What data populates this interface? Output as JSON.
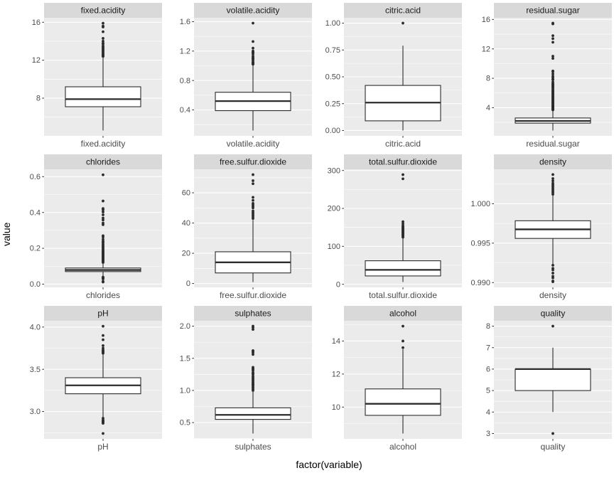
{
  "figure": {
    "colors": {
      "strip_bg": "#D9D9D9",
      "strip_text": "#1A1A1A",
      "panel_bg": "#EBEBEB",
      "grid_line": "#FFFFFF",
      "box_stroke": "#2B2B2B",
      "box_fill": "#FFFFFF",
      "axis_text": "#4D4D4D",
      "tick_mark": "#333333",
      "background": "#FFFFFF"
    }
  },
  "chart_data": {
    "type": "boxplot",
    "facet_layout": {
      "rows": 3,
      "cols": 4
    },
    "xlabel": "factor(variable)",
    "ylabel": "value",
    "legend": "none",
    "grid": "on",
    "panels": [
      {
        "title": "fixed.acidity",
        "x_label": "fixed.acidity",
        "ylim": [
          4.03,
          16.47
        ],
        "tick_values": [
          8,
          12,
          16
        ],
        "tick_labels": [
          "8",
          "12",
          "16"
        ],
        "box": {
          "whisker_low": 4.6,
          "q1": 7.1,
          "median": 7.9,
          "q3": 9.2,
          "whisker_high": 12.3
        },
        "outliers": [
          12.4,
          12.45,
          12.5,
          12.55,
          12.6,
          12.7,
          12.8,
          12.9,
          13.0,
          13.1,
          13.2,
          13.3,
          13.4,
          13.5,
          13.7,
          13.8,
          14.0,
          14.3,
          15.0,
          15.5,
          15.6,
          15.9
        ]
      },
      {
        "title": "volatile.acidity",
        "x_label": "volatile.acidity",
        "ylim": [
          0.047,
          1.653
        ],
        "tick_values": [
          0.4,
          0.8,
          1.2,
          1.6
        ],
        "tick_labels": [
          "0.4",
          "0.8",
          "1.2",
          "1.6"
        ],
        "box": {
          "whisker_low": 0.12,
          "q1": 0.39,
          "median": 0.52,
          "q3": 0.64,
          "whisker_high": 1.01
        },
        "outliers": [
          1.02,
          1.025,
          1.035,
          1.04,
          1.05,
          1.07,
          1.09,
          1.1,
          1.115,
          1.13,
          1.16,
          1.18,
          1.185,
          1.2,
          1.24,
          1.33,
          1.58
        ]
      },
      {
        "title": "citric.acid",
        "x_label": "citric.acid",
        "ylim": [
          -0.05,
          1.05
        ],
        "tick_values": [
          0,
          0.25,
          0.5,
          0.75,
          1.0
        ],
        "tick_labels": [
          "0.00",
          "0.25",
          "0.50",
          "0.75",
          "1.00"
        ],
        "box": {
          "whisker_low": 0.0,
          "q1": 0.09,
          "median": 0.26,
          "q3": 0.42,
          "whisker_high": 0.79
        },
        "outliers": [
          1.0
        ]
      },
      {
        "title": "residual.sugar",
        "x_label": "residual.sugar",
        "ylim": [
          0.17,
          16.23
        ],
        "tick_values": [
          4,
          8,
          12,
          16
        ],
        "tick_labels": [
          "4",
          "8",
          "12",
          "16"
        ],
        "box": {
          "whisker_low": 0.9,
          "q1": 1.9,
          "median": 2.2,
          "q3": 2.6,
          "whisker_high": 3.65
        },
        "outliers": [
          3.7,
          3.75,
          3.8,
          3.85,
          3.9,
          3.95,
          4.0,
          4.05,
          4.1,
          4.15,
          4.2,
          4.25,
          4.3,
          4.4,
          4.5,
          4.6,
          4.65,
          4.7,
          4.8,
          4.9,
          5.0,
          5.1,
          5.15,
          5.2,
          5.3,
          5.4,
          5.5,
          5.6,
          5.7,
          5.8,
          5.9,
          6.0,
          6.1,
          6.2,
          6.3,
          6.4,
          6.55,
          6.7,
          6.8,
          6.9,
          7.0,
          7.1,
          7.2,
          7.3,
          7.5,
          7.8,
          7.9,
          8.1,
          8.3,
          8.6,
          8.9,
          9.0,
          10.7,
          11.0,
          12.9,
          13.4,
          13.8,
          15.4,
          15.5
        ]
      },
      {
        "title": "chlorides",
        "x_label": "chlorides",
        "ylim": [
          -0.018,
          0.641
        ],
        "tick_values": [
          0,
          0.2,
          0.4,
          0.6
        ],
        "tick_labels": [
          "0.0",
          "0.2",
          "0.4",
          "0.6"
        ],
        "box": {
          "whisker_low": 0.041,
          "q1": 0.07,
          "median": 0.079,
          "q3": 0.09,
          "whisker_high": 0.119
        },
        "outliers": [
          0.012,
          0.015,
          0.029,
          0.034,
          0.038,
          0.039,
          0.121,
          0.125,
          0.128,
          0.132,
          0.135,
          0.139,
          0.142,
          0.146,
          0.15,
          0.153,
          0.157,
          0.161,
          0.165,
          0.169,
          0.172,
          0.176,
          0.18,
          0.184,
          0.188,
          0.194,
          0.2,
          0.205,
          0.211,
          0.216,
          0.222,
          0.23,
          0.235,
          0.24,
          0.25,
          0.263,
          0.27,
          0.332,
          0.341,
          0.358,
          0.369,
          0.387,
          0.403,
          0.415,
          0.422,
          0.464,
          0.61
        ]
      },
      {
        "title": "free.sulfur.dioxide",
        "x_label": "free.sulfur.dioxide",
        "ylim": [
          -2.55,
          75.55
        ],
        "tick_values": [
          0,
          20,
          40,
          60
        ],
        "tick_labels": [
          "0",
          "20",
          "40",
          "60"
        ],
        "box": {
          "whisker_low": 1,
          "q1": 7,
          "median": 14,
          "q3": 21,
          "whisker_high": 42
        },
        "outliers": [
          43,
          44,
          45,
          46,
          47,
          48,
          50,
          51,
          52,
          53,
          55,
          57,
          66,
          68,
          72
        ]
      },
      {
        "title": "total.sulfur.dioxide",
        "x_label": "total.sulfur.dioxide",
        "ylim": [
          -8.15,
          303.15
        ],
        "tick_values": [
          0,
          100,
          200,
          300
        ],
        "tick_labels": [
          "0",
          "100",
          "200",
          "300"
        ],
        "box": {
          "whisker_low": 6,
          "q1": 22,
          "median": 38,
          "q3": 62,
          "whisker_high": 122
        },
        "outliers": [
          124,
          126,
          128,
          130,
          132,
          134,
          136,
          138,
          140,
          142,
          144,
          146,
          148,
          150,
          152,
          155,
          160,
          165,
          278,
          289
        ]
      },
      {
        "title": "density",
        "x_label": "density",
        "ylim": [
          0.98939,
          1.00437
        ],
        "tick_values": [
          0.99,
          0.995,
          1.0
        ],
        "tick_labels": [
          "0.990",
          "0.995",
          "1.000"
        ],
        "box": {
          "whisker_low": 0.99235,
          "q1": 0.9956,
          "median": 0.99675,
          "q3": 0.99784,
          "whisker_high": 1.0011
        },
        "outliers": [
          1.0012,
          1.0014,
          1.0016,
          1.0018,
          1.002,
          1.0022,
          1.0024,
          1.0026,
          1.0029,
          1.0032,
          1.0037,
          0.9901,
          0.9902,
          0.9906,
          0.9908,
          0.9912,
          0.9916,
          0.9918,
          0.9922
        ]
      },
      {
        "title": "pH",
        "x_label": "pH",
        "ylim": [
          2.676,
          4.074
        ],
        "tick_values": [
          3.0,
          3.5,
          4.0
        ],
        "tick_labels": [
          "3.0",
          "3.5",
          "4.0"
        ],
        "box": {
          "whisker_low": 2.93,
          "q1": 3.21,
          "median": 3.31,
          "q3": 3.4,
          "whisker_high": 3.68
        },
        "outliers": [
          3.69,
          3.7,
          3.71,
          3.72,
          3.73,
          3.75,
          3.78,
          3.85,
          3.9,
          4.01,
          2.92,
          2.9,
          2.89,
          2.88,
          2.87,
          2.86,
          2.74
        ]
      },
      {
        "title": "sulphates",
        "x_label": "sulphates",
        "ylim": [
          0.2465,
          2.0835
        ],
        "tick_values": [
          0.5,
          1.0,
          1.5,
          2.0
        ],
        "tick_labels": [
          "0.5",
          "1.0",
          "1.5",
          "2.0"
        ],
        "box": {
          "whisker_low": 0.33,
          "q1": 0.55,
          "median": 0.62,
          "q3": 0.73,
          "whisker_high": 0.99
        },
        "outliers": [
          1.0,
          1.02,
          1.04,
          1.06,
          1.08,
          1.09,
          1.1,
          1.12,
          1.14,
          1.16,
          1.18,
          1.2,
          1.22,
          1.25,
          1.26,
          1.28,
          1.31,
          1.33,
          1.34,
          1.36,
          1.56,
          1.59,
          1.61,
          1.62,
          1.95,
          1.98,
          2.0
        ]
      },
      {
        "title": "alcohol",
        "x_label": "alcohol",
        "ylim": [
          8.075,
          15.225
        ],
        "tick_values": [
          10,
          12,
          14
        ],
        "tick_labels": [
          "10",
          "12",
          "14"
        ],
        "box": {
          "whisker_low": 8.4,
          "q1": 9.5,
          "median": 10.2,
          "q3": 11.1,
          "whisker_high": 13.5
        },
        "outliers": [
          13.6,
          14.0,
          14.9
        ]
      },
      {
        "title": "quality",
        "x_label": "quality",
        "ylim": [
          2.75,
          8.25
        ],
        "tick_values": [
          3,
          4,
          5,
          6,
          7,
          8
        ],
        "tick_labels": [
          "3",
          "4",
          "5",
          "6",
          "7",
          "8"
        ],
        "box": {
          "whisker_low": 4,
          "q1": 5,
          "median": 6,
          "q3": 6,
          "whisker_high": 7
        },
        "outliers": [
          3,
          8
        ]
      }
    ]
  }
}
